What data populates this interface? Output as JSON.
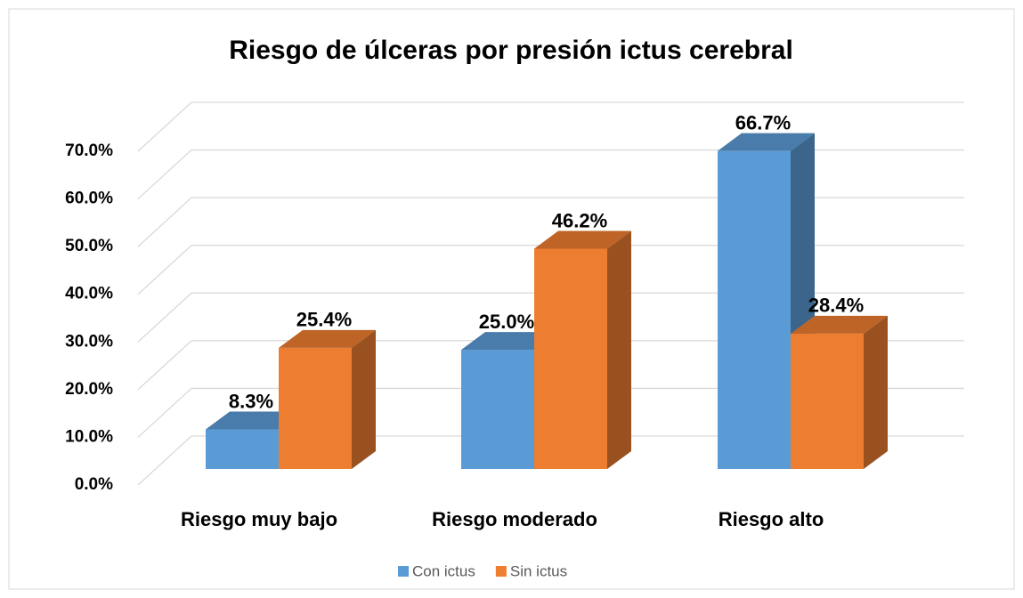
{
  "chart_data": {
    "type": "bar3d",
    "title": "Riesgo de úlceras por presión ictus cerebral",
    "categories": [
      "Riesgo muy bajo",
      "Riesgo moderado",
      "Riesgo alto"
    ],
    "series": [
      {
        "name": "Con ictus",
        "color": "#5b9bd5",
        "values": [
          8.3,
          25.0,
          66.7
        ],
        "value_labels": [
          "8.3%",
          "25.0%",
          "66.7%"
        ]
      },
      {
        "name": "Sin ictus",
        "color": "#ed7d31",
        "values": [
          25.4,
          46.2,
          28.4
        ],
        "value_labels": [
          "25.4%",
          "46.2%",
          "28.4%"
        ]
      }
    ],
    "ylim": [
      0,
      70
    ],
    "yticks": [
      {
        "value": 0,
        "label": "0.0%"
      },
      {
        "value": 10,
        "label": "10.0%"
      },
      {
        "value": 20,
        "label": "20.0%"
      },
      {
        "value": 30,
        "label": "30.0%"
      },
      {
        "value": 40,
        "label": "40.0%"
      },
      {
        "value": 50,
        "label": "50.0%"
      },
      {
        "value": 60,
        "label": "60.0%"
      },
      {
        "value": 70,
        "label": "70.0%"
      }
    ],
    "grid": true,
    "legend": "bottom"
  }
}
